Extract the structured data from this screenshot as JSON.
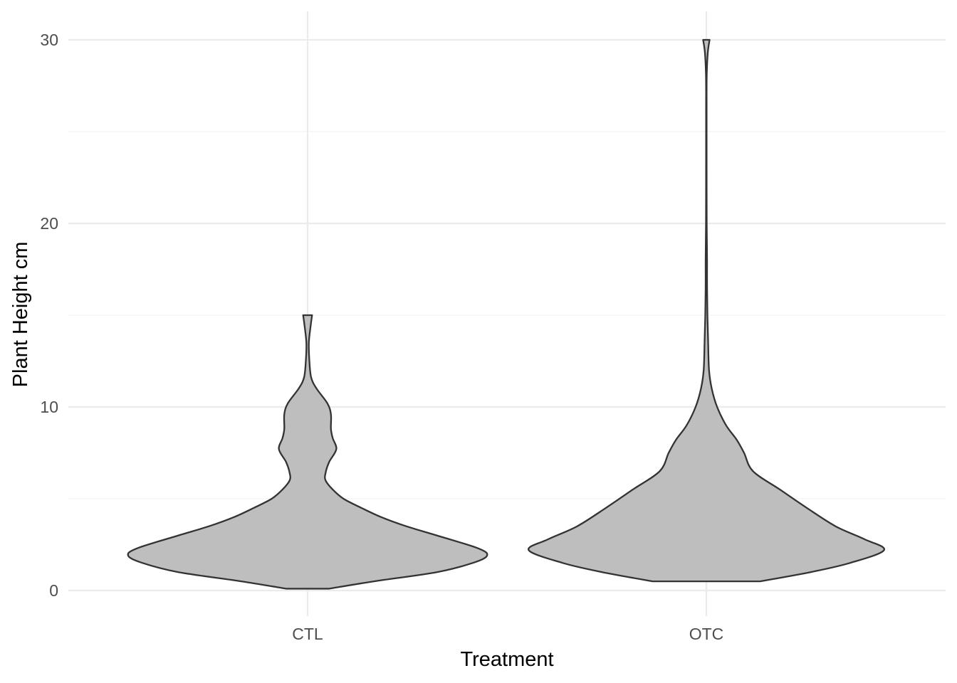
{
  "chart_data": {
    "type": "violin",
    "title": "",
    "xlabel": "Treatment",
    "ylabel": "Plant Height cm",
    "ylim": [
      -1.3,
      31.5
    ],
    "y_ticks": [
      0,
      10,
      20,
      30
    ],
    "y_minor_ticks": [
      5,
      15,
      25
    ],
    "grid": true,
    "legend": "none",
    "fill_color": "#bebebe",
    "stroke_color": "#333333",
    "categories": [
      "CTL",
      "OTC"
    ],
    "series": [
      {
        "category": "CTL",
        "profile": [
          {
            "y": 0.1,
            "density": 0.12
          },
          {
            "y": 0.5,
            "density": 0.37
          },
          {
            "y": 1.0,
            "density": 0.72
          },
          {
            "y": 1.5,
            "density": 0.92
          },
          {
            "y": 1.9,
            "density": 1.0
          },
          {
            "y": 2.3,
            "density": 0.95
          },
          {
            "y": 3.0,
            "density": 0.72
          },
          {
            "y": 3.5,
            "density": 0.55
          },
          {
            "y": 4.0,
            "density": 0.41
          },
          {
            "y": 4.5,
            "density": 0.3
          },
          {
            "y": 5.0,
            "density": 0.2
          },
          {
            "y": 5.5,
            "density": 0.14
          },
          {
            "y": 6.0,
            "density": 0.1
          },
          {
            "y": 6.4,
            "density": 0.1
          },
          {
            "y": 7.0,
            "density": 0.12
          },
          {
            "y": 7.7,
            "density": 0.16
          },
          {
            "y": 8.3,
            "density": 0.14
          },
          {
            "y": 8.8,
            "density": 0.13
          },
          {
            "y": 9.6,
            "density": 0.13
          },
          {
            "y": 10.2,
            "density": 0.11
          },
          {
            "y": 11.0,
            "density": 0.05
          },
          {
            "y": 11.6,
            "density": 0.02
          },
          {
            "y": 12.5,
            "density": 0.01
          },
          {
            "y": 13.5,
            "density": 0.007
          },
          {
            "y": 14.5,
            "density": 0.018
          },
          {
            "y": 15.0,
            "density": 0.025
          }
        ]
      },
      {
        "category": "OTC",
        "profile": [
          {
            "y": 0.5,
            "density": 0.3
          },
          {
            "y": 1.0,
            "density": 0.58
          },
          {
            "y": 1.5,
            "density": 0.8
          },
          {
            "y": 2.2,
            "density": 0.99
          },
          {
            "y": 2.8,
            "density": 0.88
          },
          {
            "y": 3.5,
            "density": 0.72
          },
          {
            "y": 4.5,
            "density": 0.56
          },
          {
            "y": 5.5,
            "density": 0.41
          },
          {
            "y": 6.5,
            "density": 0.26
          },
          {
            "y": 7.5,
            "density": 0.21
          },
          {
            "y": 8.2,
            "density": 0.17
          },
          {
            "y": 9.0,
            "density": 0.11
          },
          {
            "y": 10.0,
            "density": 0.06
          },
          {
            "y": 11.0,
            "density": 0.03
          },
          {
            "y": 12.0,
            "density": 0.015
          },
          {
            "y": 13.5,
            "density": 0.01
          },
          {
            "y": 15.0,
            "density": 0.006
          },
          {
            "y": 16.5,
            "density": 0.004
          },
          {
            "y": 18.0,
            "density": 0.004
          },
          {
            "y": 20.0,
            "density": 0.002
          },
          {
            "y": 23.0,
            "density": 0.0015
          },
          {
            "y": 26.0,
            "density": 0.0015
          },
          {
            "y": 28.0,
            "density": 0.002
          },
          {
            "y": 29.3,
            "density": 0.008
          },
          {
            "y": 30.0,
            "density": 0.018
          }
        ]
      }
    ]
  }
}
